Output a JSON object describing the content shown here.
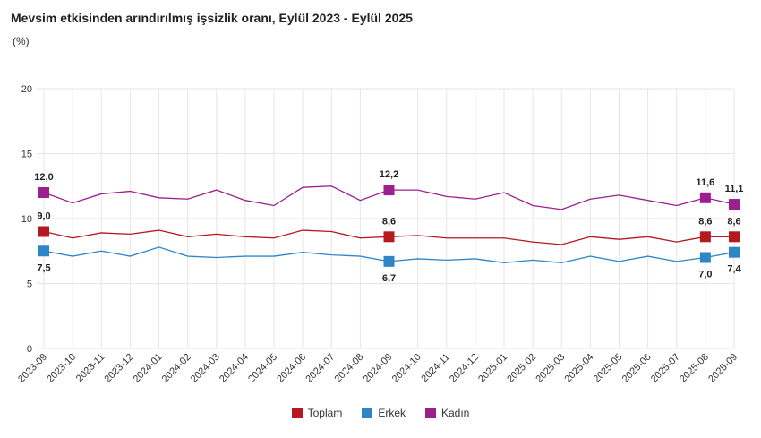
{
  "title": "Mevsim etkisinden arındırılmış işsizlik oranı, Eylül 2023 - Eylül 2025",
  "unit": "(%)",
  "chart_data": {
    "type": "line",
    "title": "Mevsim etkisinden arındırılmış işsizlik oranı, Eylül 2023 - Eylül 2025",
    "ylabel": "(%)",
    "ylim": [
      0,
      20
    ],
    "yticks": [
      0,
      5,
      10,
      15,
      20
    ],
    "grid": true,
    "legend": "bottom",
    "categories": [
      "2023-09",
      "2023-10",
      "2023-11",
      "2023-12",
      "2024-01",
      "2024-02",
      "2024-03",
      "2024-04",
      "2024-05",
      "2024-06",
      "2024-07",
      "2024-08",
      "2024-09",
      "2024-10",
      "2024-11",
      "2024-12",
      "2025-01",
      "2025-02",
      "2025-03",
      "2025-04",
      "2025-05",
      "2025-06",
      "2025-07",
      "2025-08",
      "2025-09"
    ],
    "series": [
      {
        "name": "Toplam",
        "color": "#b5191f",
        "values": [
          9.0,
          8.5,
          8.9,
          8.8,
          9.1,
          8.6,
          8.8,
          8.6,
          8.5,
          9.1,
          9.0,
          8.5,
          8.6,
          8.7,
          8.5,
          8.5,
          8.5,
          8.2,
          8.0,
          8.6,
          8.4,
          8.6,
          8.2,
          8.6,
          8.6
        ],
        "labels": {
          "0": "9,0",
          "12": "8,6",
          "23": "8,6",
          "24": "8,6"
        },
        "label_pos": "above"
      },
      {
        "name": "Erkek",
        "color": "#2e86c9",
        "values": [
          7.5,
          7.1,
          7.5,
          7.1,
          7.8,
          7.1,
          7.0,
          7.1,
          7.1,
          7.4,
          7.2,
          7.1,
          6.7,
          6.9,
          6.8,
          6.9,
          6.6,
          6.8,
          6.6,
          7.1,
          6.7,
          7.1,
          6.7,
          7.0,
          7.4
        ],
        "labels": {
          "0": "7,5",
          "12": "6,7",
          "23": "7,0",
          "24": "7,4"
        },
        "label_pos": "below"
      },
      {
        "name": "Kadın",
        "color": "#9b1f8e",
        "values": [
          12.0,
          11.2,
          11.9,
          12.1,
          11.6,
          11.5,
          12.2,
          11.4,
          11.0,
          12.4,
          12.5,
          11.4,
          12.2,
          12.2,
          11.7,
          11.5,
          12.0,
          11.0,
          10.7,
          11.5,
          11.8,
          11.4,
          11.0,
          11.6,
          11.1
        ],
        "labels": {
          "0": "12,0",
          "12": "12,2",
          "23": "11,6",
          "24": "11,1"
        },
        "label_pos": "above"
      }
    ]
  }
}
